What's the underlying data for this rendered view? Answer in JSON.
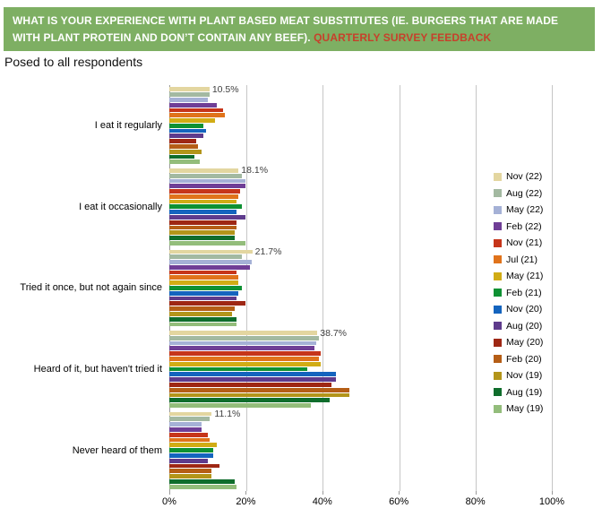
{
  "header": {
    "title_main": "WHAT IS YOUR EXPERIENCE WITH PLANT BASED MEAT SUBSTITUTES (IE. BURGERS THAT ARE MADE WITH PLANT PROTEIN AND DON’T CONTAIN ANY BEEF). ",
    "title_highlight": "QUARTERLY SURVEY FEEDBACK",
    "subtitle": "Posed to all respondents"
  },
  "colors": {
    "banner_bg": "#7EAF63",
    "banner_text": "#FFFFFF",
    "banner_highlight": "#C7402B",
    "gridline": "#C6C6C6",
    "axis": "#9B9B9B",
    "data_label": "#3F3F3F"
  },
  "chart_data": {
    "type": "bar",
    "orientation": "horizontal",
    "title": "",
    "value_unit": "%",
    "xlim": [
      0,
      100
    ],
    "x_tick_values": [
      0,
      20,
      40,
      60,
      80,
      100
    ],
    "x_tick_labels": [
      "0%",
      "20%",
      "40%",
      "60%",
      "80%",
      "100%"
    ],
    "grid": "vertical",
    "legend_position": "right",
    "categories": [
      "I eat it regularly",
      "I eat it occasionally",
      "Tried it once, but not again since",
      "Heard of it, but haven't tried it",
      "Never heard of them"
    ],
    "data_labels_series": "Nov (22)",
    "data_labels": [
      "10.5%",
      "18.1%",
      "21.7%",
      "38.7%",
      "11.1%"
    ],
    "series": [
      {
        "name": "Nov (22)",
        "color": "#E3D6A0",
        "values": [
          10.5,
          18.1,
          21.7,
          38.7,
          11.1
        ]
      },
      {
        "name": "Aug (22)",
        "color": "#A3B9A1",
        "values": [
          10.5,
          19.0,
          19.0,
          39.0,
          10.5
        ]
      },
      {
        "name": "May (22)",
        "color": "#A5B1D6",
        "values": [
          10.0,
          20.0,
          21.5,
          38.5,
          8.5
        ]
      },
      {
        "name": "Feb (22)",
        "color": "#6F3E96",
        "values": [
          12.5,
          20.0,
          21.0,
          38.0,
          8.5
        ]
      },
      {
        "name": "Nov (21)",
        "color": "#C6351A",
        "values": [
          14.0,
          18.5,
          17.5,
          39.5,
          10.0
        ]
      },
      {
        "name": "Jul (21)",
        "color": "#E0731B",
        "values": [
          14.5,
          18.0,
          18.0,
          39.0,
          10.5
        ]
      },
      {
        "name": "May (21)",
        "color": "#D1AC15",
        "values": [
          12.0,
          17.5,
          18.0,
          39.5,
          12.5
        ]
      },
      {
        "name": "Feb (21)",
        "color": "#0E9133",
        "values": [
          9.0,
          19.0,
          19.0,
          36.0,
          11.5
        ]
      },
      {
        "name": "Nov (20)",
        "color": "#1464BE",
        "values": [
          9.5,
          17.5,
          18.0,
          43.5,
          11.5
        ]
      },
      {
        "name": "Aug (20)",
        "color": "#5E3B8C",
        "values": [
          9.0,
          20.0,
          17.5,
          43.5,
          10.0
        ]
      },
      {
        "name": "May (20)",
        "color": "#9E2714",
        "values": [
          7.0,
          17.5,
          20.0,
          42.5,
          13.0
        ]
      },
      {
        "name": "Feb (20)",
        "color": "#B55E16",
        "values": [
          7.5,
          17.5,
          17.0,
          47.0,
          11.0
        ]
      },
      {
        "name": "Nov (19)",
        "color": "#B3951A",
        "values": [
          8.5,
          17.0,
          16.5,
          47.0,
          11.0
        ]
      },
      {
        "name": "Aug (19)",
        "color": "#0F6D2C",
        "values": [
          6.5,
          17.0,
          17.5,
          42.0,
          17.0
        ]
      },
      {
        "name": "May (19)",
        "color": "#93BD7B",
        "values": [
          8.0,
          20.0,
          17.5,
          37.0,
          17.5
        ]
      }
    ]
  }
}
